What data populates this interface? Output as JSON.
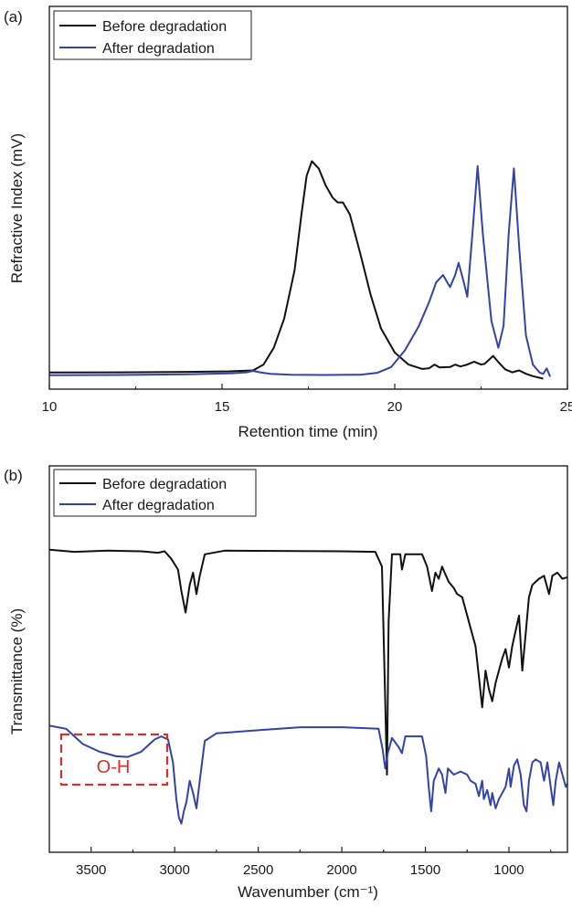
{
  "colors": {
    "before": "#111111",
    "after": "#3344a8",
    "annotation": "#d9302b",
    "axis": "#222222"
  },
  "chart_data": [
    {
      "type": "line",
      "panel_label": "(a)",
      "xlabel": "Retention time (min)",
      "ylabel": "Refractive Index (mV)",
      "xlim": [
        10,
        25
      ],
      "ylim": [
        0,
        100
      ],
      "x_tick_labels": [
        "10",
        "15",
        "20",
        "25"
      ],
      "y_ticks_labeled": false,
      "grid": false,
      "legend": "top-left",
      "series": [
        {
          "name": "Before degradation",
          "color_key": "before",
          "points": [
            [
              10,
              2.7
            ],
            [
              12,
              2.8
            ],
            [
              14,
              3
            ],
            [
              15.2,
              3.2
            ],
            [
              15.9,
              3.6
            ],
            [
              16.2,
              6
            ],
            [
              16.5,
              13
            ],
            [
              16.8,
              25
            ],
            [
              17.1,
              45
            ],
            [
              17.3,
              68
            ],
            [
              17.45,
              84
            ],
            [
              17.6,
              90
            ],
            [
              17.8,
              87
            ],
            [
              18.0,
              80
            ],
            [
              18.2,
              75
            ],
            [
              18.35,
              73
            ],
            [
              18.5,
              73
            ],
            [
              18.7,
              68
            ],
            [
              19.0,
              52
            ],
            [
              19.3,
              35
            ],
            [
              19.6,
              21
            ],
            [
              20.0,
              11
            ],
            [
              20.4,
              6
            ],
            [
              20.8,
              4.2
            ],
            [
              21.0,
              4.5
            ],
            [
              21.15,
              6
            ],
            [
              21.3,
              4.8
            ],
            [
              21.6,
              5
            ],
            [
              21.75,
              6
            ],
            [
              21.9,
              5.2
            ],
            [
              22.1,
              6
            ],
            [
              22.3,
              7.2
            ],
            [
              22.5,
              6
            ],
            [
              22.6,
              6.3
            ],
            [
              22.85,
              9.6
            ],
            [
              23.0,
              7
            ],
            [
              23.2,
              4
            ],
            [
              23.4,
              2.8
            ],
            [
              23.6,
              3.6
            ],
            [
              23.8,
              2.2
            ],
            [
              24.0,
              1.2
            ],
            [
              24.3,
              0.2
            ]
          ]
        },
        {
          "name": "After degradation",
          "color_key": "after",
          "points": [
            [
              10,
              1.6
            ],
            [
              12,
              1.7
            ],
            [
              14,
              2
            ],
            [
              15.3,
              2.4
            ],
            [
              15.7,
              2.8
            ],
            [
              15.9,
              3.4
            ],
            [
              16.1,
              2.8
            ],
            [
              16.4,
              2.2
            ],
            [
              17,
              1.8
            ],
            [
              18,
              1.7
            ],
            [
              19,
              1.8
            ],
            [
              19.5,
              2.6
            ],
            [
              19.9,
              5
            ],
            [
              20.3,
              12
            ],
            [
              20.7,
              22
            ],
            [
              21.0,
              32
            ],
            [
              21.2,
              40
            ],
            [
              21.4,
              43
            ],
            [
              21.6,
              38
            ],
            [
              21.75,
              43
            ],
            [
              21.85,
              48
            ],
            [
              22.0,
              40
            ],
            [
              22.1,
              34
            ],
            [
              22.25,
              60
            ],
            [
              22.4,
              88
            ],
            [
              22.55,
              60
            ],
            [
              22.8,
              24
            ],
            [
              23.0,
              13
            ],
            [
              23.15,
              22
            ],
            [
              23.3,
              60
            ],
            [
              23.45,
              87
            ],
            [
              23.6,
              55
            ],
            [
              23.8,
              18
            ],
            [
              24.0,
              6
            ],
            [
              24.2,
              2.6
            ],
            [
              24.3,
              2.2
            ],
            [
              24.4,
              4.4
            ],
            [
              24.5,
              1
            ]
          ]
        }
      ]
    },
    {
      "type": "line",
      "panel_label": "(b)",
      "xlabel": "Wavenumber (cm⁻¹)",
      "ylabel": "Transmittance (%)",
      "xlim": [
        3750,
        650
      ],
      "ylim": [
        0,
        100
      ],
      "x_tick_labels": [
        "3500",
        "3000",
        "2500",
        "2000",
        "1500",
        "1000"
      ],
      "y_ticks_labeled": false,
      "grid": false,
      "legend": "top-left",
      "annotation": {
        "text": "O-H",
        "x_range": [
          3700,
          3070
        ],
        "color_key": "annotation"
      },
      "series": [
        {
          "name": "Before degradation",
          "color_key": "before",
          "points": [
            [
              3750,
              93.5
            ],
            [
              3600,
              92.8
            ],
            [
              3400,
              93.2
            ],
            [
              3200,
              93
            ],
            [
              3100,
              92.5
            ],
            [
              3060,
              93
            ],
            [
              3020,
              90.5
            ],
            [
              2980,
              87
            ],
            [
              2960,
              80
            ],
            [
              2935,
              73
            ],
            [
              2910,
              82
            ],
            [
              2890,
              86
            ],
            [
              2870,
              79
            ],
            [
              2850,
              85
            ],
            [
              2820,
              92
            ],
            [
              2700,
              93.2
            ],
            [
              2000,
              93
            ],
            [
              1800,
              92.8
            ],
            [
              1760,
              88
            ],
            [
              1745,
              55
            ],
            [
              1730,
              20
            ],
            [
              1720,
              70
            ],
            [
              1700,
              92
            ],
            [
              1650,
              92
            ],
            [
              1640,
              87
            ],
            [
              1620,
              92
            ],
            [
              1520,
              92
            ],
            [
              1490,
              88
            ],
            [
              1460,
              80
            ],
            [
              1440,
              86
            ],
            [
              1420,
              84
            ],
            [
              1400,
              88
            ],
            [
              1385,
              86
            ],
            [
              1360,
              83
            ],
            [
              1330,
              81
            ],
            [
              1310,
              79
            ],
            [
              1280,
              78
            ],
            [
              1250,
              72
            ],
            [
              1230,
              68
            ],
            [
              1200,
              62
            ],
            [
              1180,
              52
            ],
            [
              1160,
              42
            ],
            [
              1140,
              54
            ],
            [
              1120,
              48
            ],
            [
              1100,
              44
            ],
            [
              1080,
              50
            ],
            [
              1060,
              54
            ],
            [
              1040,
              58
            ],
            [
              1020,
              61
            ],
            [
              1000,
              55
            ],
            [
              980,
              62
            ],
            [
              960,
              67
            ],
            [
              940,
              72
            ],
            [
              920,
              54
            ],
            [
              900,
              66
            ],
            [
              880,
              78
            ],
            [
              860,
              82
            ],
            [
              840,
              83
            ],
            [
              820,
              84
            ],
            [
              790,
              85
            ],
            [
              760,
              79
            ],
            [
              740,
              85
            ],
            [
              710,
              86
            ],
            [
              680,
              84
            ],
            [
              650,
              84.5
            ]
          ]
        },
        {
          "name": "After degradation",
          "color_key": "after",
          "points": [
            [
              3750,
              36
            ],
            [
              3650,
              35
            ],
            [
              3550,
              30
            ],
            [
              3450,
              27.5
            ],
            [
              3350,
              26
            ],
            [
              3280,
              25.8
            ],
            [
              3200,
              27.5
            ],
            [
              3120,
              31.5
            ],
            [
              3080,
              32.5
            ],
            [
              3040,
              31.5
            ],
            [
              3010,
              24
            ],
            [
              2990,
              12
            ],
            [
              2975,
              6
            ],
            [
              2960,
              4
            ],
            [
              2945,
              8
            ],
            [
              2930,
              11
            ],
            [
              2910,
              18
            ],
            [
              2890,
              14
            ],
            [
              2870,
              9
            ],
            [
              2850,
              18
            ],
            [
              2820,
              31
            ],
            [
              2750,
              33.5
            ],
            [
              2500,
              34.5
            ],
            [
              2250,
              35.5
            ],
            [
              2000,
              35.5
            ],
            [
              1780,
              35
            ],
            [
              1755,
              28
            ],
            [
              1740,
              22
            ],
            [
              1725,
              27
            ],
            [
              1700,
              32
            ],
            [
              1660,
              29
            ],
            [
              1640,
              27
            ],
            [
              1620,
              32.5
            ],
            [
              1520,
              32.5
            ],
            [
              1495,
              26
            ],
            [
              1480,
              16
            ],
            [
              1465,
              8
            ],
            [
              1450,
              18
            ],
            [
              1420,
              22
            ],
            [
              1400,
              20
            ],
            [
              1380,
              14
            ],
            [
              1365,
              22
            ],
            [
              1330,
              20
            ],
            [
              1290,
              21
            ],
            [
              1250,
              20
            ],
            [
              1230,
              18
            ],
            [
              1200,
              17
            ],
            [
              1180,
              13
            ],
            [
              1160,
              18
            ],
            [
              1150,
              12
            ],
            [
              1130,
              15
            ],
            [
              1110,
              10
            ],
            [
              1100,
              14
            ],
            [
              1080,
              9
            ],
            [
              1060,
              12
            ],
            [
              1040,
              14
            ],
            [
              1020,
              16
            ],
            [
              1000,
              22
            ],
            [
              990,
              16
            ],
            [
              970,
              23
            ],
            [
              950,
              25
            ],
            [
              930,
              20
            ],
            [
              910,
              10
            ],
            [
              895,
              8
            ],
            [
              880,
              18
            ],
            [
              860,
              24
            ],
            [
              840,
              25
            ],
            [
              810,
              24
            ],
            [
              790,
              18
            ],
            [
              770,
              24
            ],
            [
              750,
              16
            ],
            [
              735,
              10
            ],
            [
              720,
              18
            ],
            [
              700,
              24
            ],
            [
              680,
              20
            ],
            [
              660,
              16
            ],
            [
              650,
              17
            ]
          ]
        }
      ]
    }
  ]
}
